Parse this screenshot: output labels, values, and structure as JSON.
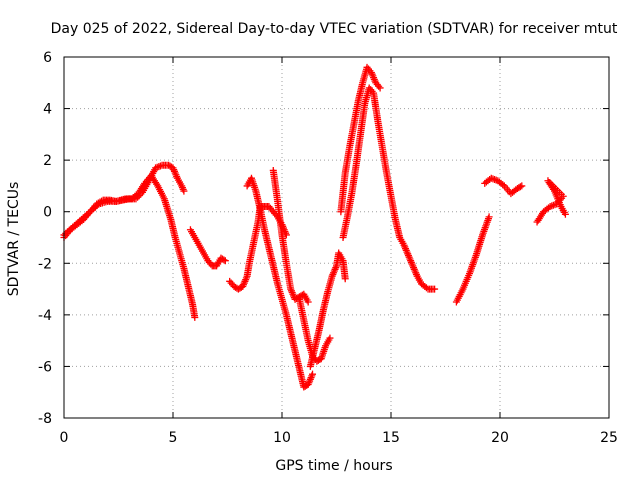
{
  "chart_data": {
    "type": "scatter",
    "title": "Day 025 of 2022, Sidereal Day-to-day VTEC variation (SDTVAR) for receiver mtut",
    "xlabel": "GPS time / hours",
    "ylabel": "SDTVAR / TECUs",
    "xlim": [
      0,
      25
    ],
    "ylim": [
      -8,
      6
    ],
    "x_ticks": [
      0,
      5,
      10,
      15,
      20,
      25
    ],
    "y_ticks": [
      -8,
      -6,
      -4,
      -2,
      0,
      2,
      4,
      6
    ],
    "x_tick_labels": [
      "0",
      "5",
      "10",
      "15",
      "20",
      "25"
    ],
    "y_tick_labels": [
      "-8",
      "-6",
      "-4",
      "-2",
      "0",
      "2",
      "4",
      "6"
    ],
    "grid": true,
    "marker": "plus",
    "marker_color": "#ff0000",
    "series": [
      {
        "segments": [
          [
            [
              0.0,
              -1.0
            ],
            [
              0.3,
              -0.7
            ],
            [
              0.6,
              -0.5
            ],
            [
              0.9,
              -0.3
            ],
            [
              1.2,
              0.0
            ],
            [
              1.5,
              0.3
            ],
            [
              1.8,
              0.45
            ],
            [
              2.1,
              0.45
            ],
            [
              2.4,
              0.4
            ],
            [
              2.7,
              0.45
            ],
            [
              3.0,
              0.5
            ],
            [
              3.3,
              0.5
            ],
            [
              3.6,
              0.75
            ],
            [
              3.9,
              1.2
            ],
            [
              4.2,
              1.7
            ],
            [
              4.5,
              1.8
            ],
            [
              4.8,
              1.8
            ],
            [
              5.0,
              1.7
            ],
            [
              5.2,
              1.3
            ],
            [
              5.4,
              1.0
            ],
            [
              5.5,
              0.8
            ]
          ],
          [
            [
              0.0,
              -0.9
            ],
            [
              0.4,
              -0.6
            ],
            [
              0.8,
              -0.3
            ],
            [
              1.2,
              0.0
            ],
            [
              1.6,
              0.3
            ],
            [
              2.0,
              0.4
            ],
            [
              2.4,
              0.4
            ],
            [
              2.8,
              0.5
            ],
            [
              3.1,
              0.5
            ],
            [
              3.4,
              0.7
            ],
            [
              3.7,
              1.1
            ],
            [
              4.0,
              1.4
            ],
            [
              4.3,
              1.0
            ],
            [
              4.6,
              0.5
            ],
            [
              4.9,
              -0.3
            ],
            [
              5.1,
              -1.0
            ],
            [
              5.3,
              -1.6
            ],
            [
              5.5,
              -2.2
            ],
            [
              5.7,
              -2.9
            ],
            [
              5.9,
              -3.6
            ],
            [
              6.0,
              -4.1
            ]
          ],
          [
            [
              5.8,
              -0.7
            ],
            [
              6.0,
              -1.0
            ],
            [
              6.2,
              -1.3
            ],
            [
              6.4,
              -1.6
            ],
            [
              6.6,
              -1.9
            ],
            [
              6.8,
              -2.1
            ],
            [
              7.0,
              -2.1
            ],
            [
              7.2,
              -1.8
            ],
            [
              7.4,
              -1.9
            ]
          ],
          [
            [
              7.6,
              -2.7
            ],
            [
              7.8,
              -2.9
            ],
            [
              8.0,
              -3.0
            ],
            [
              8.2,
              -2.9
            ],
            [
              8.4,
              -2.5
            ],
            [
              8.5,
              -2.0
            ],
            [
              8.7,
              -1.2
            ],
            [
              8.9,
              -0.4
            ],
            [
              9.0,
              0.2
            ],
            [
              9.2,
              0.2
            ],
            [
              9.4,
              0.2
            ],
            [
              9.6,
              0.0
            ],
            [
              9.8,
              -0.2
            ],
            [
              10.0,
              -0.5
            ],
            [
              10.2,
              -0.9
            ]
          ],
          [
            [
              8.4,
              1.0
            ],
            [
              8.6,
              1.3
            ],
            [
              8.8,
              0.8
            ],
            [
              9.0,
              0.1
            ],
            [
              9.2,
              -0.7
            ],
            [
              9.4,
              -1.4
            ],
            [
              9.6,
              -2.1
            ],
            [
              9.8,
              -2.8
            ],
            [
              10.0,
              -3.4
            ],
            [
              10.2,
              -4.0
            ],
            [
              10.4,
              -4.7
            ],
            [
              10.6,
              -5.4
            ],
            [
              10.8,
              -6.1
            ],
            [
              11.0,
              -6.8
            ],
            [
              11.2,
              -6.7
            ],
            [
              11.4,
              -6.3
            ]
          ],
          [
            [
              9.6,
              1.6
            ],
            [
              9.8,
              0.4
            ],
            [
              10.0,
              -0.9
            ],
            [
              10.2,
              -2.0
            ],
            [
              10.4,
              -3.0
            ],
            [
              10.6,
              -3.4
            ],
            [
              10.8,
              -3.3
            ],
            [
              11.0,
              -3.2
            ],
            [
              11.2,
              -3.5
            ]
          ],
          [
            [
              10.8,
              -3.4
            ],
            [
              11.0,
              -4.2
            ],
            [
              11.2,
              -5.0
            ],
            [
              11.4,
              -5.6
            ],
            [
              11.6,
              -5.8
            ],
            [
              11.8,
              -5.7
            ],
            [
              12.0,
              -5.2
            ],
            [
              12.2,
              -4.9
            ]
          ],
          [
            [
              11.3,
              -6.0
            ],
            [
              11.5,
              -5.3
            ],
            [
              11.7,
              -4.6
            ],
            [
              11.9,
              -3.8
            ],
            [
              12.1,
              -3.1
            ],
            [
              12.3,
              -2.5
            ],
            [
              12.5,
              -2.1
            ],
            [
              12.6,
              -1.6
            ],
            [
              12.8,
              -1.9
            ],
            [
              12.9,
              -2.6
            ]
          ],
          [
            [
              12.7,
              0.0
            ],
            [
              12.9,
              1.5
            ],
            [
              13.1,
              2.5
            ],
            [
              13.3,
              3.4
            ],
            [
              13.5,
              4.3
            ],
            [
              13.7,
              5.0
            ],
            [
              13.9,
              5.6
            ],
            [
              14.1,
              5.4
            ],
            [
              14.3,
              5.0
            ],
            [
              14.5,
              4.8
            ]
          ],
          [
            [
              12.8,
              -1.0
            ],
            [
              13.0,
              -0.2
            ],
            [
              13.2,
              0.7
            ],
            [
              13.4,
              1.8
            ],
            [
              13.6,
              3.0
            ],
            [
              13.8,
              4.2
            ],
            [
              14.0,
              4.8
            ],
            [
              14.2,
              4.6
            ],
            [
              14.4,
              3.5
            ],
            [
              14.6,
              2.5
            ],
            [
              14.8,
              1.5
            ],
            [
              15.0,
              0.6
            ],
            [
              15.2,
              -0.3
            ],
            [
              15.4,
              -1.0
            ],
            [
              15.6,
              -1.3
            ],
            [
              15.8,
              -1.7
            ],
            [
              16.0,
              -2.1
            ],
            [
              16.2,
              -2.5
            ],
            [
              16.4,
              -2.8
            ],
            [
              16.7,
              -3.0
            ],
            [
              17.0,
              -3.0
            ]
          ],
          [
            [
              18.0,
              -3.5
            ],
            [
              18.3,
              -3.0
            ],
            [
              18.6,
              -2.4
            ],
            [
              18.9,
              -1.7
            ],
            [
              19.2,
              -0.9
            ],
            [
              19.5,
              -0.2
            ]
          ],
          [
            [
              19.3,
              1.1
            ],
            [
              19.6,
              1.3
            ],
            [
              19.9,
              1.2
            ],
            [
              20.2,
              1.0
            ],
            [
              20.5,
              0.7
            ],
            [
              20.8,
              0.9
            ],
            [
              21.0,
              1.0
            ]
          ],
          [
            [
              21.7,
              -0.4
            ],
            [
              22.0,
              -0.0
            ],
            [
              22.3,
              0.2
            ],
            [
              22.6,
              0.3
            ],
            [
              22.9,
              0.6
            ],
            [
              22.2,
              1.2
            ],
            [
              22.5,
              0.8
            ],
            [
              22.8,
              0.2
            ],
            [
              23.0,
              -0.1
            ]
          ]
        ]
      }
    ]
  }
}
